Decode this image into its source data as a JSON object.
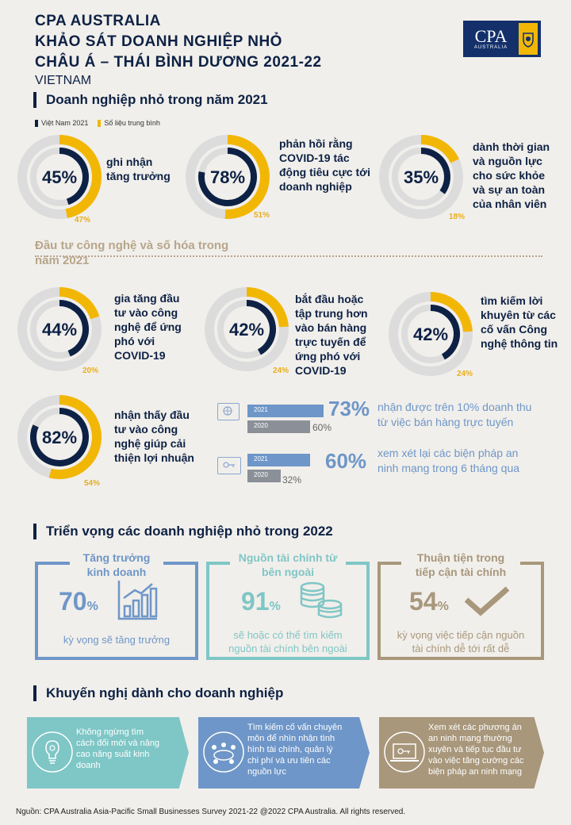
{
  "header": {
    "title_line1": "CPA AUSTRALIA",
    "title_line2": "KHẢO SÁT DOANH NGHIỆP NHỎ",
    "title_line3": "CHÂU Á – THÁI BÌNH DƯƠNG 2021-22",
    "country": "VIETNAM",
    "logo_text": "CPA",
    "logo_sub": "AUSTRALIA"
  },
  "section1": {
    "title": "Doanh nghiệp nhỏ trong năm 2021",
    "legend_vn": "Việt Nam 2021",
    "legend_avg": "Số liệu trung bình",
    "colors": {
      "vn": "#0d2145",
      "avg": "#f2b705",
      "track": "#dcdcdc"
    },
    "donuts": [
      {
        "value": 45,
        "label": "45%",
        "avg": 47,
        "avg_label": "47%",
        "desc": [
          "ghi nhận",
          "tăng trưởng"
        ]
      },
      {
        "value": 78,
        "label": "78%",
        "avg": 51,
        "avg_label": "51%",
        "desc": [
          "phản hồi rằng",
          "COVID-19 tác",
          "động tiêu cực tới",
          "doanh nghiệp"
        ]
      },
      {
        "value": 35,
        "label": "35%",
        "avg": 18,
        "avg_label": "18%",
        "desc": [
          "dành thời gian",
          "và nguồn lực",
          "cho sức khỏe",
          "và sự an toàn",
          "của nhân viên"
        ]
      }
    ]
  },
  "section2": {
    "title_line1": "Đầu tư công nghệ và số hóa trong",
    "title_line2": "năm 2021",
    "donuts": [
      {
        "value": 44,
        "label": "44%",
        "avg": 20,
        "avg_label": "20%",
        "desc": [
          "gia tăng đầu",
          "tư vào công",
          "nghệ để ứng",
          "phó với",
          "COVID-19"
        ]
      },
      {
        "value": 42,
        "label": "42%",
        "avg": 24,
        "avg_label": "24%",
        "desc": [
          "bắt đầu hoặc",
          "tập trung hơn",
          "vào bán hàng",
          "trực tuyến để",
          "ứng phó với",
          "COVID-19"
        ]
      },
      {
        "value": 42,
        "label": "42%",
        "avg": 24,
        "avg_label": "24%",
        "desc": [
          "tìm kiếm lời",
          "khuyên từ các",
          "cố vấn Công",
          "nghệ thông tin"
        ]
      },
      {
        "value": 82,
        "label": "82%",
        "avg": 54,
        "avg_label": "54%",
        "desc": [
          "nhận thấy đầu",
          "tư vào công",
          "nghệ giúp cải",
          "thiện lợi nhuận"
        ]
      }
    ],
    "bars": [
      {
        "y2021": "2021",
        "y2020": "2020",
        "v2021": 73,
        "v2021_label": "73%",
        "v2020": 60,
        "v2020_label": "60%",
        "desc": [
          "nhận được trên 10% doanh thu",
          "từ việc bán hàng trực tuyến"
        ]
      },
      {
        "y2021": "2021",
        "y2020": "2020",
        "v2021": 60,
        "v2021_label": "60%",
        "v2020": 32,
        "v2020_label": "32%",
        "desc": [
          "xem xét lại các biện pháp an",
          "ninh mạng trong 6 tháng qua"
        ]
      }
    ]
  },
  "section3": {
    "title": "Triển vọng các doanh nghiệp nhỏ trong 2022",
    "boxes": [
      {
        "title": [
          "Tăng trưởng",
          "kinh doanh"
        ],
        "pct": "70",
        "unit": "%",
        "desc": [
          "kỳ vọng sẽ tăng trưởng"
        ],
        "color": "#6e96c8",
        "icon": "bar-chart-icon"
      },
      {
        "title": [
          "Nguồn tài chính từ",
          "bên ngoài"
        ],
        "pct": "91",
        "unit": "%",
        "desc": [
          "sẽ hoặc có thể tìm kiếm",
          "nguồn tài chính bên ngoài"
        ],
        "color": "#7fc6c6",
        "icon": "coins-icon"
      },
      {
        "title": [
          "Thuận tiện trong",
          "tiếp cận tài chính"
        ],
        "pct": "54",
        "unit": "%",
        "desc": [
          "kỳ vọng việc tiếp cận nguồn",
          "tài chính dễ tới rất dễ"
        ],
        "color": "#a8977b",
        "icon": "checkmark-icon"
      }
    ]
  },
  "section4": {
    "title": "Khuyến nghị dành cho doanh nghiệp",
    "cards": [
      {
        "text": [
          "Không ngừng tìm",
          "cách đổi mới và nâng",
          "cao năng suất kinh",
          "doanh"
        ],
        "color": "#7fc6c6",
        "icon": "lightbulb-icon"
      },
      {
        "text": [
          "Tìm kiếm cố vấn chuyên",
          "môn để nhìn nhận tình",
          "hình tài chính, quản lý",
          "chi phí và ưu tiên các",
          "nguồn lực"
        ],
        "color": "#6e96c8",
        "icon": "meeting-icon"
      },
      {
        "text": [
          "Xem xét các phương án",
          "an ninh mạng thường",
          "xuyên và tiếp tục đầu tư",
          "vào việc tăng cường các",
          "biện pháp an ninh mạng"
        ],
        "color": "#a8977b",
        "icon": "laptop-key-icon"
      }
    ]
  },
  "footer": {
    "source": "Nguồn:  CPA Australia Asia-Pacific Small Businesses Survey 2021-22 @2022 CPA Australia. All rights reserved."
  }
}
